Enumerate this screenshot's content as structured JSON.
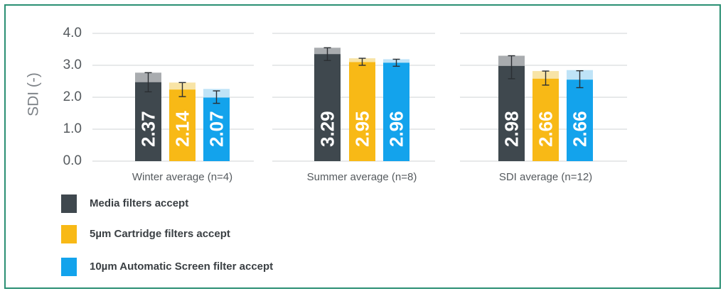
{
  "colors": {
    "border": "#2a8f73",
    "grid": "#cfd3d6",
    "text": "#555a5e"
  },
  "chart_data": {
    "type": "bar",
    "ylabel": "SDI (-)",
    "ylim": [
      0,
      4
    ],
    "yticks": [
      "0.0",
      "1.0",
      "2.0",
      "3.0",
      "4.0"
    ],
    "grid": true,
    "categories": [
      "Winter average (n=4)",
      "Summer average (n=8)",
      "SDI average (n=12)"
    ],
    "series": [
      {
        "name": "Media filters accept",
        "color": "#3f484e",
        "light_color": "#a9acaf",
        "values": [
          2.37,
          3.29,
          2.98
        ],
        "labels": [
          "2.37",
          "3.29",
          "2.98"
        ],
        "error_mean": [
          2.47,
          3.35,
          2.98
        ],
        "error_low": [
          2.17,
          3.15,
          2.58
        ],
        "error_high": [
          2.77,
          3.55,
          3.3
        ],
        "light_top": [
          2.77,
          3.55,
          3.3
        ]
      },
      {
        "name": "5µm Cartridge filters accept",
        "color": "#f8b916",
        "light_color": "#f8e4a6",
        "values": [
          2.14,
          2.95,
          2.66
        ],
        "labels": [
          "2.14",
          "2.95",
          "2.66"
        ],
        "error_mean": [
          2.24,
          3.1,
          2.58
        ],
        "error_low": [
          2.02,
          3.0,
          2.38
        ],
        "error_high": [
          2.46,
          3.22,
          2.82
        ],
        "light_top": [
          2.46,
          3.22,
          2.82
        ]
      },
      {
        "name": "10µm Automatic Screen filter accept",
        "color": "#13a3ec",
        "light_color": "#bfe3f7",
        "values": [
          2.07,
          2.96,
          2.66
        ],
        "labels": [
          "2.07",
          "2.96",
          "2.66"
        ],
        "error_mean": [
          1.99,
          3.08,
          2.55
        ],
        "error_low": [
          1.81,
          2.97,
          2.3
        ],
        "error_high": [
          2.2,
          3.19,
          2.83
        ],
        "light_top": [
          2.26,
          3.19,
          2.85
        ]
      }
    ]
  },
  "legend": [
    {
      "label": "Media filters accept",
      "color": "#3f484e"
    },
    {
      "label": "5µm Cartridge filters accept",
      "color": "#f8b916"
    },
    {
      "label": "10µm Automatic Screen filter accept",
      "color": "#13a3ec"
    }
  ]
}
